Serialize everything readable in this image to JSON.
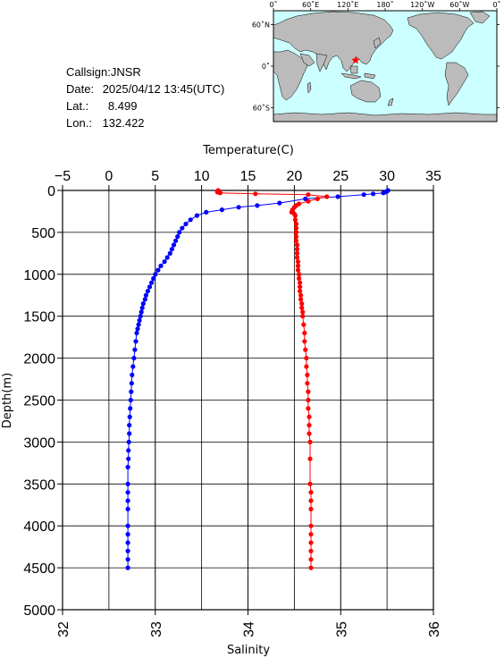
{
  "station": {
    "callsign": "Callsign:JNSR",
    "date_label": "Date:",
    "date": "2025/04/12 13:45(UTC)",
    "lat_label": "Lat.:",
    "lat": "8.499",
    "lon_label": "Lon.:",
    "lon": "132.422"
  },
  "map": {
    "lon_labels": [
      "0˚",
      "60˚E",
      "120˚E",
      "180˚",
      "120˚W",
      "60˚W",
      "0˚"
    ],
    "lat_labels": [
      "60˚N",
      "0˚",
      "60˚S"
    ],
    "marker_lat": 8.499,
    "marker_lon": 132.422,
    "ocean_color": "#ccffff",
    "land_color": "#bbbbbb",
    "marker_color": "#ff0000"
  },
  "chart_data": {
    "type": "scatter",
    "ylabel": "Depth(m)",
    "ylim": [
      5000,
      0
    ],
    "yticks": [
      0,
      500,
      1000,
      1500,
      2000,
      2500,
      3000,
      3500,
      4000,
      4500,
      5000
    ],
    "top_axis": {
      "label": "Temperature(C)",
      "range": [
        -5,
        35
      ],
      "ticks": [
        -5,
        0,
        5,
        10,
        15,
        20,
        25,
        30,
        35
      ]
    },
    "bottom_axis": {
      "label": "Salinity",
      "range": [
        32,
        36
      ],
      "ticks": [
        32,
        33,
        34,
        35,
        36
      ]
    },
    "grid": true,
    "series": [
      {
        "variable": "temperature",
        "color": "#0000ff",
        "points": [
          [
            30.1,
            0
          ],
          [
            30.0,
            10
          ],
          [
            29.8,
            20
          ],
          [
            29.6,
            30
          ],
          [
            28.5,
            40
          ],
          [
            27.5,
            50
          ],
          [
            24.7,
            75
          ],
          [
            21.2,
            100
          ],
          [
            18.4,
            150
          ],
          [
            16.0,
            180
          ],
          [
            14.0,
            200
          ],
          [
            12.2,
            230
          ],
          [
            10.5,
            260
          ],
          [
            9.5,
            300
          ],
          [
            8.8,
            350
          ],
          [
            8.3,
            400
          ],
          [
            7.9,
            450
          ],
          [
            7.6,
            500
          ],
          [
            7.4,
            550
          ],
          [
            7.2,
            600
          ],
          [
            7.0,
            650
          ],
          [
            6.8,
            700
          ],
          [
            6.6,
            750
          ],
          [
            6.3,
            800
          ],
          [
            6.0,
            850
          ],
          [
            5.6,
            900
          ],
          [
            5.3,
            950
          ],
          [
            5.0,
            1000
          ],
          [
            4.8,
            1050
          ],
          [
            4.6,
            1100
          ],
          [
            4.4,
            1150
          ],
          [
            4.2,
            1200
          ],
          [
            4.0,
            1250
          ],
          [
            3.9,
            1300
          ],
          [
            3.7,
            1350
          ],
          [
            3.6,
            1400
          ],
          [
            3.5,
            1450
          ],
          [
            3.4,
            1500
          ],
          [
            3.3,
            1550
          ],
          [
            3.2,
            1600
          ],
          [
            3.1,
            1650
          ],
          [
            3.0,
            1700
          ],
          [
            2.9,
            1800
          ],
          [
            2.8,
            1900
          ],
          [
            2.7,
            2000
          ],
          [
            2.6,
            2100
          ],
          [
            2.5,
            2200
          ],
          [
            2.45,
            2300
          ],
          [
            2.4,
            2400
          ],
          [
            2.35,
            2500
          ],
          [
            2.3,
            2600
          ],
          [
            2.25,
            2700
          ],
          [
            2.2,
            2800
          ],
          [
            2.2,
            2900
          ],
          [
            2.15,
            3000
          ],
          [
            2.1,
            3100
          ],
          [
            2.1,
            3200
          ],
          [
            2.05,
            3300
          ],
          [
            2.05,
            3500
          ],
          [
            2.05,
            3600
          ],
          [
            2.05,
            3700
          ],
          [
            2.05,
            3800
          ],
          [
            2.05,
            4000
          ],
          [
            2.05,
            4100
          ],
          [
            2.05,
            4200
          ],
          [
            2.05,
            4300
          ],
          [
            2.05,
            4400
          ],
          [
            2.05,
            4500
          ]
        ]
      },
      {
        "variable": "salinity",
        "color": "#ff0000",
        "points": [
          [
            33.68,
            0
          ],
          [
            33.67,
            10
          ],
          [
            33.67,
            20
          ],
          [
            33.7,
            30
          ],
          [
            34.08,
            40
          ],
          [
            34.65,
            50
          ],
          [
            34.85,
            75
          ],
          [
            34.75,
            100
          ],
          [
            34.65,
            130
          ],
          [
            34.55,
            160
          ],
          [
            34.52,
            180
          ],
          [
            34.5,
            200
          ],
          [
            34.48,
            230
          ],
          [
            34.47,
            260
          ],
          [
            34.5,
            280
          ],
          [
            34.51,
            300
          ],
          [
            34.51,
            350
          ],
          [
            34.52,
            400
          ],
          [
            34.52,
            450
          ],
          [
            34.52,
            500
          ],
          [
            34.52,
            550
          ],
          [
            34.52,
            600
          ],
          [
            34.53,
            650
          ],
          [
            34.53,
            700
          ],
          [
            34.53,
            750
          ],
          [
            34.53,
            800
          ],
          [
            34.54,
            850
          ],
          [
            34.54,
            900
          ],
          [
            34.54,
            950
          ],
          [
            34.55,
            1000
          ],
          [
            34.55,
            1050
          ],
          [
            34.56,
            1100
          ],
          [
            34.56,
            1150
          ],
          [
            34.56,
            1200
          ],
          [
            34.57,
            1250
          ],
          [
            34.57,
            1300
          ],
          [
            34.58,
            1350
          ],
          [
            34.58,
            1400
          ],
          [
            34.59,
            1450
          ],
          [
            34.59,
            1500
          ],
          [
            34.6,
            1600
          ],
          [
            34.61,
            1700
          ],
          [
            34.61,
            1800
          ],
          [
            34.62,
            1900
          ],
          [
            34.63,
            2000
          ],
          [
            34.63,
            2100
          ],
          [
            34.64,
            2200
          ],
          [
            34.64,
            2300
          ],
          [
            34.65,
            2400
          ],
          [
            34.65,
            2500
          ],
          [
            34.65,
            2600
          ],
          [
            34.66,
            2700
          ],
          [
            34.66,
            2800
          ],
          [
            34.66,
            2900
          ],
          [
            34.67,
            3000
          ],
          [
            34.67,
            3200
          ],
          [
            34.67,
            3500
          ],
          [
            34.68,
            3600
          ],
          [
            34.68,
            3700
          ],
          [
            34.68,
            3800
          ],
          [
            34.68,
            4000
          ],
          [
            34.68,
            4100
          ],
          [
            34.68,
            4200
          ],
          [
            34.68,
            4300
          ],
          [
            34.68,
            4400
          ],
          [
            34.68,
            4500
          ]
        ]
      }
    ]
  }
}
